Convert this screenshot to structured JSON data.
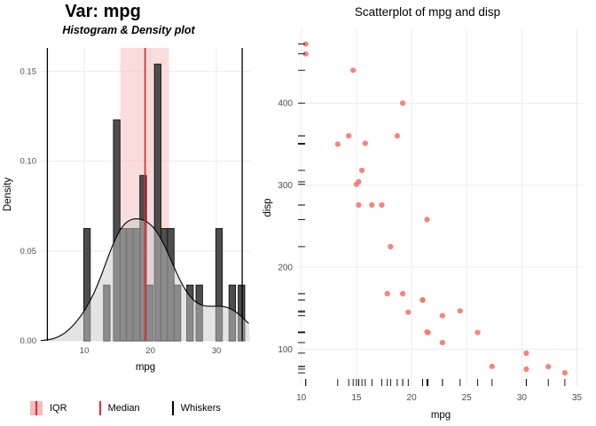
{
  "chart_data": [
    {
      "type": "histogram",
      "title": "Var: mpg",
      "subtitle": "Histogram & Density plot",
      "xlabel": "mpg",
      "ylabel": "Density",
      "xlim": [
        3.4,
        35.1
      ],
      "ylim": [
        0,
        0.163
      ],
      "x_ticks": [
        10,
        20,
        30
      ],
      "y_ticks": [
        0,
        0.05,
        0.1,
        0.15
      ],
      "grid": true,
      "binwidth": 1,
      "bins": [
        {
          "x": 9.9,
          "d": 0.0625
        },
        {
          "x": 12.9,
          "d": 0.031
        },
        {
          "x": 14.4,
          "d": 0.123
        },
        {
          "x": 15.4,
          "d": 0.0625
        },
        {
          "x": 16.4,
          "d": 0.0625
        },
        {
          "x": 17.4,
          "d": 0.0625
        },
        {
          "x": 18.4,
          "d": 0.092
        },
        {
          "x": 19.4,
          "d": 0.031
        },
        {
          "x": 20.6,
          "d": 0.154
        },
        {
          "x": 21.6,
          "d": 0.0625
        },
        {
          "x": 22.6,
          "d": 0.0625
        },
        {
          "x": 23.6,
          "d": 0.031
        },
        {
          "x": 25.5,
          "d": 0.031
        },
        {
          "x": 26.9,
          "d": 0.031
        },
        {
          "x": 29.9,
          "d": 0.0625
        },
        {
          "x": 31.9,
          "d": 0.031
        },
        {
          "x": 33.3,
          "d": 0.031
        }
      ],
      "values": [
        21,
        21,
        22.8,
        21.4,
        18.7,
        18.1,
        14.3,
        24.4,
        22.8,
        19.2,
        17.8,
        16.4,
        17.3,
        15.2,
        10.4,
        10.4,
        14.7,
        32.4,
        30.4,
        33.9,
        21.5,
        15.5,
        15.2,
        13.3,
        19.2,
        27.3,
        26,
        30.4,
        15.8,
        19.7,
        15,
        21.4
      ],
      "density_bandwidth": 2.48,
      "stats": {
        "q1": 15.43,
        "median": 19.2,
        "q3": 22.8,
        "whisker_low": 4.4,
        "whisker_high": 33.9
      },
      "legend": [
        "IQR",
        "Median",
        "Whiskers"
      ],
      "legend_position": "bottom",
      "colors": {
        "iqr_fill": "#f8c0c0",
        "median_line": "#e8262d",
        "whisker_line": "#000000",
        "bar_fill": "#4d4d4d",
        "bar_stroke": "#111111",
        "density_fill": "#c9c9c9",
        "density_stroke": "#000000",
        "grid": "#ebebeb"
      }
    },
    {
      "type": "scatter",
      "title": "Scatterplot of mpg and disp",
      "xlabel": "mpg",
      "ylabel": "disp",
      "xlim": [
        9.7,
        35.6
      ],
      "ylim": [
        55,
        490
      ],
      "x_ticks": [
        10,
        15,
        20,
        25,
        30,
        35
      ],
      "y_ticks": [
        100,
        200,
        300,
        400
      ],
      "grid": true,
      "rug": "both",
      "point_color": "#f8766d",
      "points": [
        [
          21,
          160
        ],
        [
          21,
          160
        ],
        [
          22.8,
          108
        ],
        [
          21.4,
          258
        ],
        [
          18.7,
          360
        ],
        [
          18.1,
          225
        ],
        [
          14.3,
          360
        ],
        [
          24.4,
          146.7
        ],
        [
          22.8,
          140.8
        ],
        [
          19.2,
          167.6
        ],
        [
          17.8,
          167.6
        ],
        [
          16.4,
          275.8
        ],
        [
          17.3,
          275.8
        ],
        [
          15.2,
          275.8
        ],
        [
          10.4,
          472
        ],
        [
          10.4,
          460
        ],
        [
          14.7,
          440
        ],
        [
          32.4,
          78.7
        ],
        [
          30.4,
          75.7
        ],
        [
          33.9,
          71.1
        ],
        [
          21.5,
          120.1
        ],
        [
          15.5,
          318
        ],
        [
          15.2,
          304
        ],
        [
          13.3,
          350
        ],
        [
          19.2,
          400
        ],
        [
          27.3,
          79
        ],
        [
          26,
          120.3
        ],
        [
          30.4,
          95.1
        ],
        [
          15.8,
          351
        ],
        [
          19.7,
          145
        ],
        [
          15,
          301
        ],
        [
          21.4,
          121
        ]
      ],
      "colors": {
        "grid": "#ebebeb",
        "rug": "#000000"
      }
    }
  ]
}
